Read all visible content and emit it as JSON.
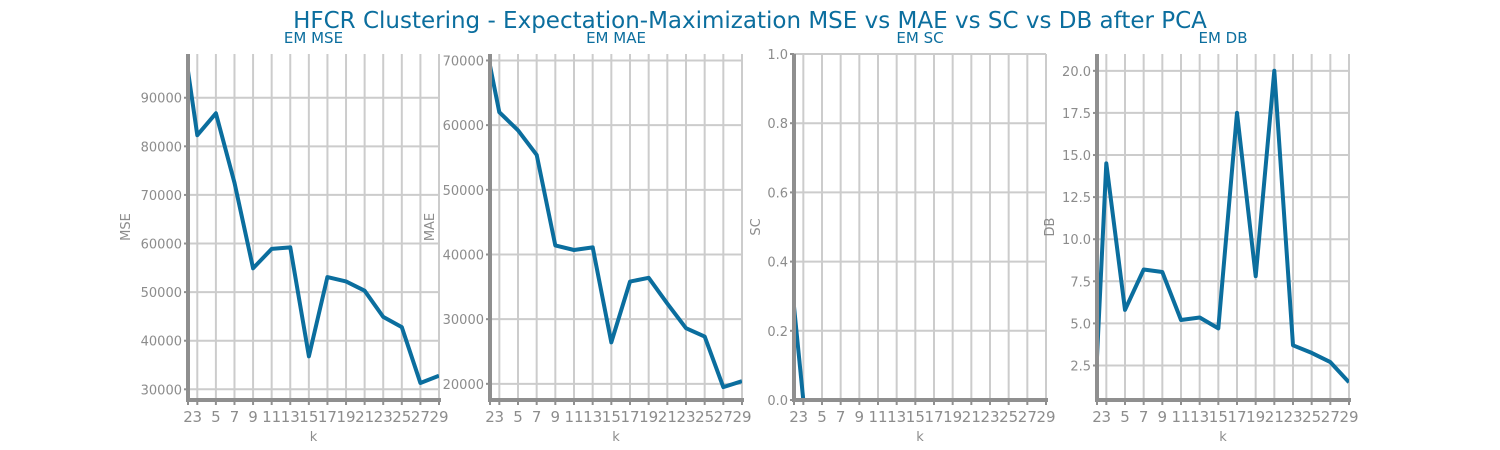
{
  "title": "HFCR Clustering - Expectation-Maximization MSE vs MAE vs SC vs DB after PCA",
  "colors": {
    "line": "#0b6e9e",
    "title": "#0b6e9e",
    "axis": "#8f8f8f",
    "grid": "#cccccc",
    "tick_text": "#8c8c8c"
  },
  "chart_data": [
    {
      "type": "line",
      "title": "EM MSE",
      "xlabel": "k",
      "ylabel": "MSE",
      "grid": true,
      "x": [
        2,
        3,
        5,
        7,
        9,
        11,
        13,
        15,
        17,
        19,
        21,
        23,
        25,
        27,
        29
      ],
      "xticks": [
        2,
        3,
        5,
        7,
        9,
        11,
        13,
        15,
        17,
        19,
        21,
        23,
        25,
        27,
        29
      ],
      "xlim": [
        2,
        29
      ],
      "ylim": [
        27800,
        99000
      ],
      "yticks": [
        30000,
        40000,
        50000,
        60000,
        70000,
        80000,
        90000
      ],
      "ytick_labels": [
        "30000",
        "40000",
        "50000",
        "60000",
        "70000",
        "80000",
        "90000"
      ],
      "series": [
        {
          "values": [
            95500,
            82300,
            86800,
            72500,
            54900,
            58900,
            59200,
            36800,
            53100,
            52200,
            50300,
            44900,
            42800,
            31300,
            32800
          ]
        }
      ]
    },
    {
      "type": "line",
      "title": "EM MAE",
      "xlabel": "k",
      "ylabel": "MAE",
      "grid": true,
      "x": [
        2,
        3,
        5,
        7,
        9,
        11,
        13,
        15,
        17,
        19,
        21,
        23,
        25,
        27,
        29
      ],
      "xticks": [
        2,
        3,
        5,
        7,
        9,
        11,
        13,
        15,
        17,
        19,
        21,
        23,
        25,
        27,
        29
      ],
      "xlim": [
        2,
        29
      ],
      "ylim": [
        17500,
        71000
      ],
      "yticks": [
        20000,
        30000,
        40000,
        50000,
        60000,
        70000
      ],
      "ytick_labels": [
        "20000",
        "30000",
        "40000",
        "50000",
        "60000",
        "70000"
      ],
      "series": [
        {
          "values": [
            69200,
            62000,
            59200,
            55400,
            41400,
            40700,
            41100,
            26400,
            35800,
            36400,
            32400,
            28600,
            27300,
            19500,
            20400
          ]
        }
      ]
    },
    {
      "type": "line",
      "title": "EM SC",
      "xlabel": "k",
      "ylabel": "SC",
      "grid": true,
      "x": [
        2,
        3
      ],
      "xticks": [
        2,
        3,
        5,
        7,
        9,
        11,
        13,
        15,
        17,
        19,
        21,
        23,
        25,
        27,
        29
      ],
      "xlim": [
        2,
        29
      ],
      "ylim": [
        0,
        1
      ],
      "yticks": [
        0.0,
        0.2,
        0.4,
        0.6,
        0.8,
        1.0
      ],
      "ytick_labels": [
        "0.0",
        "0.2",
        "0.4",
        "0.6",
        "0.8",
        "1.0"
      ],
      "series": [
        {
          "values": [
            0.27,
            0.0
          ]
        }
      ]
    },
    {
      "type": "line",
      "title": "EM DB",
      "xlabel": "k",
      "ylabel": "DB",
      "grid": true,
      "x": [
        2,
        3,
        5,
        7,
        9,
        11,
        13,
        15,
        17,
        19,
        21,
        23,
        25,
        27,
        29
      ],
      "xticks": [
        2,
        3,
        5,
        7,
        9,
        11,
        13,
        15,
        17,
        19,
        21,
        23,
        25,
        27,
        29
      ],
      "xlim": [
        2,
        29
      ],
      "ylim": [
        0.45,
        21.0
      ],
      "yticks": [
        2.5,
        5.0,
        7.5,
        10.0,
        12.5,
        15.0,
        17.5,
        20.0
      ],
      "ytick_labels": [
        "2.5",
        "5.0",
        "7.5",
        "10.0",
        "12.5",
        "15.0",
        "17.5",
        "20.0"
      ],
      "series": [
        {
          "values": [
            3.0,
            14.5,
            5.8,
            8.2,
            8.05,
            5.2,
            5.35,
            4.7,
            17.5,
            7.8,
            20.0,
            3.7,
            3.25,
            2.7,
            1.5
          ]
        }
      ]
    }
  ]
}
